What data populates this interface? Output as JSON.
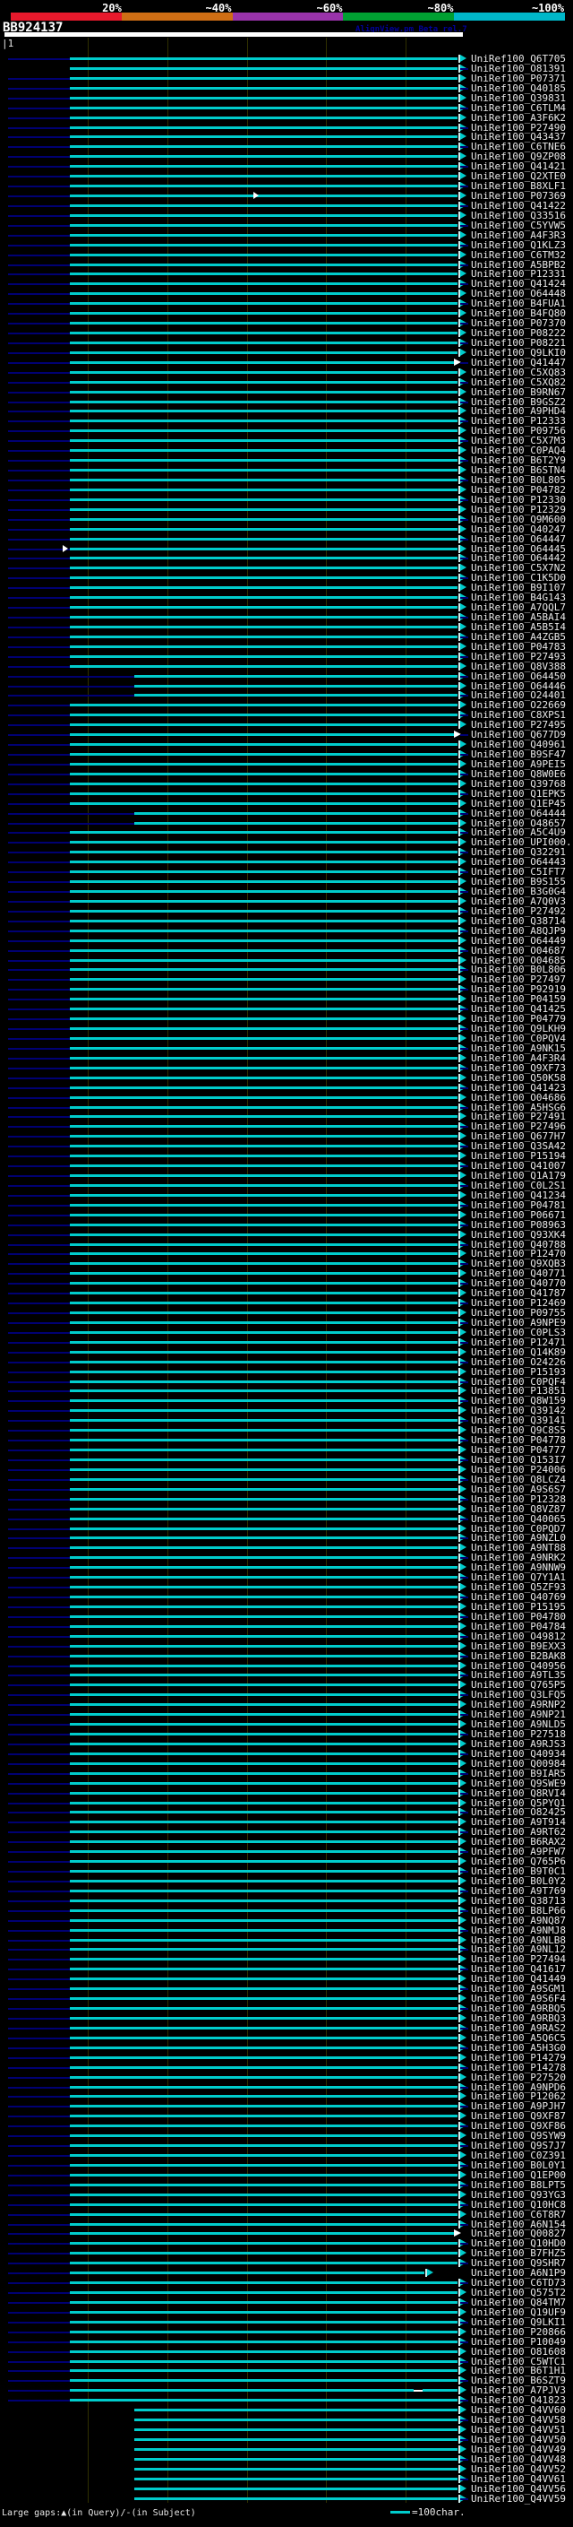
{
  "chart_data": {
    "type": "table",
    "subtype": "blast-hit-map-alignment-overview",
    "query_id": "BB924137",
    "watermark": "AlignView.pm Beta rel.7",
    "identity_scale": {
      "labels": [
        "20%",
        "~40%",
        "~60%",
        "~80%",
        "~100%"
      ],
      "colors": [
        "#e8192c",
        "#cf6e14",
        "#9933aa",
        "#00a032",
        "#00b7c9"
      ]
    },
    "query_ruler": {
      "start_label": "|1",
      "query_length": 566,
      "tick_residues": [
        100,
        200,
        300,
        400,
        500
      ]
    },
    "legend": {
      "large_gaps": "Large gaps:▲(in Query)/-(in Subject)",
      "scale_label": "=100char."
    },
    "default_hit": {
      "query_start": 79,
      "query_end": 566,
      "identity_bin": "80-100%"
    },
    "colors": {
      "hit_line": "#00cccc",
      "unaligned_lead": "#000073",
      "gridline": "#303000",
      "label_text": "#e8e8e8",
      "special_marker": "#ffffff"
    },
    "hits": [
      {
        "id": "UniRef100_Q6T705"
      },
      {
        "id": "UniRef100_O81391",
        "nv": 0
      },
      {
        "id": "UniRef100_P07371"
      },
      {
        "id": "UniRef100_Q40185"
      },
      {
        "id": "UniRef100_Q39831"
      },
      {
        "id": "UniRef100_C6TLM4"
      },
      {
        "id": "UniRef100_A3F6K2"
      },
      {
        "id": "UniRef100_P27490"
      },
      {
        "id": "UniRef100_Q43437"
      },
      {
        "id": "UniRef100_C6TNE6"
      },
      {
        "id": "UniRef100_Q9ZP08"
      },
      {
        "id": "UniRef100_Q41421"
      },
      {
        "id": "UniRef100_Q2XTE0"
      },
      {
        "id": "UniRef100_B8XLF1"
      },
      {
        "id": "UniRef100_P07369",
        "mk": 283
      },
      {
        "id": "UniRef100_Q41422"
      },
      {
        "id": "UniRef100_Q33516"
      },
      {
        "id": "UniRef100_C5YVW5"
      },
      {
        "id": "UniRef100_A4F3R3"
      },
      {
        "id": "UniRef100_Q1KLZ3"
      },
      {
        "id": "UniRef100_C6TM32"
      },
      {
        "id": "UniRef100_A5BPB2"
      },
      {
        "id": "UniRef100_P12331"
      },
      {
        "id": "UniRef100_Q41424"
      },
      {
        "id": "UniRef100_O64448"
      },
      {
        "id": "UniRef100_B4FUA1"
      },
      {
        "id": "UniRef100_B4FQ80"
      },
      {
        "id": "UniRef100_P07370"
      },
      {
        "id": "UniRef100_P08222"
      },
      {
        "id": "UniRef100_P08221"
      },
      {
        "id": "UniRef100_Q9LKI0"
      },
      {
        "id": "UniRef100_Q41447",
        "aw": 1
      },
      {
        "id": "UniRef100_C5XQ83"
      },
      {
        "id": "UniRef100_C5XQ82"
      },
      {
        "id": "UniRef100_B9RN67"
      },
      {
        "id": "UniRef100_B9GSZ2"
      },
      {
        "id": "UniRef100_A9PHD4"
      },
      {
        "id": "UniRef100_P12333"
      },
      {
        "id": "UniRef100_P09756"
      },
      {
        "id": "UniRef100_C5X7M3"
      },
      {
        "id": "UniRef100_C0PAQ4"
      },
      {
        "id": "UniRef100_B6T2Y9"
      },
      {
        "id": "UniRef100_B6STN4"
      },
      {
        "id": "UniRef100_B0L805"
      },
      {
        "id": "UniRef100_P04782"
      },
      {
        "id": "UniRef100_P12330"
      },
      {
        "id": "UniRef100_P12329"
      },
      {
        "id": "UniRef100_Q9M600"
      },
      {
        "id": "UniRef100_Q40247"
      },
      {
        "id": "UniRef100_O64447"
      },
      {
        "id": "UniRef100_O64445",
        "mk": 70
      },
      {
        "id": "UniRef100_O64442"
      },
      {
        "id": "UniRef100_C5X7N2"
      },
      {
        "id": "UniRef100_C1K5D0"
      },
      {
        "id": "UniRef100_B9I107"
      },
      {
        "id": "UniRef100_B4G143"
      },
      {
        "id": "UniRef100_A7QQL7"
      },
      {
        "id": "UniRef100_A5BAI4"
      },
      {
        "id": "UniRef100_A5B5I4"
      },
      {
        "id": "UniRef100_A4ZGB5"
      },
      {
        "id": "UniRef100_P04783"
      },
      {
        "id": "UniRef100_P27493"
      },
      {
        "id": "UniRef100_Q8V388"
      },
      {
        "id": "UniRef100_O64450",
        "nv": 150,
        "s": 150
      },
      {
        "id": "UniRef100_O64446",
        "nv": 150,
        "s": 150
      },
      {
        "id": "UniRef100_O24401",
        "nv": 150,
        "s": 150
      },
      {
        "id": "UniRef100_O22669"
      },
      {
        "id": "UniRef100_C8XPS1"
      },
      {
        "id": "UniRef100_P27495"
      },
      {
        "id": "UniRef100_Q677D9",
        "aw": 1
      },
      {
        "id": "UniRef100_Q40961"
      },
      {
        "id": "UniRef100_B9SF47"
      },
      {
        "id": "UniRef100_A9PEI5"
      },
      {
        "id": "UniRef100_Q8W0E6"
      },
      {
        "id": "UniRef100_Q39768"
      },
      {
        "id": "UniRef100_Q1EPK5"
      },
      {
        "id": "UniRef100_Q1EP45"
      },
      {
        "id": "UniRef100_O64444",
        "nv": 150,
        "s": 150
      },
      {
        "id": "UniRef100_O48657",
        "nv": 150,
        "s": 150
      },
      {
        "id": "UniRef100_A5C4U9"
      },
      {
        "id": "UniRef100_UPI000.."
      },
      {
        "id": "UniRef100_Q32291"
      },
      {
        "id": "UniRef100_O64443"
      },
      {
        "id": "UniRef100_C5IFT7"
      },
      {
        "id": "UniRef100_B9S155"
      },
      {
        "id": "UniRef100_B3G0G4"
      },
      {
        "id": "UniRef100_A7Q0V3"
      },
      {
        "id": "UniRef100_P27492"
      },
      {
        "id": "UniRef100_Q38714"
      },
      {
        "id": "UniRef100_A8QJP9"
      },
      {
        "id": "UniRef100_O64449"
      },
      {
        "id": "UniRef100_O04687"
      },
      {
        "id": "UniRef100_O04685"
      },
      {
        "id": "UniRef100_B0L806"
      },
      {
        "id": "UniRef100_P27497"
      },
      {
        "id": "UniRef100_P92919"
      },
      {
        "id": "UniRef100_P04159"
      },
      {
        "id": "UniRef100_Q41425"
      },
      {
        "id": "UniRef100_P04779"
      },
      {
        "id": "UniRef100_Q9LKH9"
      },
      {
        "id": "UniRef100_C0PQV4"
      },
      {
        "id": "UniRef100_A9NK15"
      },
      {
        "id": "UniRef100_A4F3R4"
      },
      {
        "id": "UniRef100_Q9XF73"
      },
      {
        "id": "UniRef100_Q50K58"
      },
      {
        "id": "UniRef100_Q41423"
      },
      {
        "id": "UniRef100_O04686"
      },
      {
        "id": "UniRef100_A5HSG6"
      },
      {
        "id": "UniRef100_P27491"
      },
      {
        "id": "UniRef100_P27496"
      },
      {
        "id": "UniRef100_Q677H7"
      },
      {
        "id": "UniRef100_Q3SA42"
      },
      {
        "id": "UniRef100_P15194"
      },
      {
        "id": "UniRef100_Q41007"
      },
      {
        "id": "UniRef100_Q1A179"
      },
      {
        "id": "UniRef100_C0L2S1"
      },
      {
        "id": "UniRef100_Q41234"
      },
      {
        "id": "UniRef100_P04781"
      },
      {
        "id": "UniRef100_P06671"
      },
      {
        "id": "UniRef100_P08963"
      },
      {
        "id": "UniRef100_Q93XK4"
      },
      {
        "id": "UniRef100_Q40788"
      },
      {
        "id": "UniRef100_P12470"
      },
      {
        "id": "UniRef100_Q9XQB3"
      },
      {
        "id": "UniRef100_Q40771"
      },
      {
        "id": "UniRef100_Q40770"
      },
      {
        "id": "UniRef100_Q41787"
      },
      {
        "id": "UniRef100_P12469"
      },
      {
        "id": "UniRef100_P09755"
      },
      {
        "id": "UniRef100_A9NPE9"
      },
      {
        "id": "UniRef100_C0PLS3"
      },
      {
        "id": "UniRef100_P12471"
      },
      {
        "id": "UniRef100_Q14K89"
      },
      {
        "id": "UniRef100_O24226"
      },
      {
        "id": "UniRef100_P15193"
      },
      {
        "id": "UniRef100_C0PQF4"
      },
      {
        "id": "UniRef100_P13851"
      },
      {
        "id": "UniRef100_Q8W159"
      },
      {
        "id": "UniRef100_Q39142"
      },
      {
        "id": "UniRef100_Q39141"
      },
      {
        "id": "UniRef100_Q9C8S5"
      },
      {
        "id": "UniRef100_P04778"
      },
      {
        "id": "UniRef100_P04777"
      },
      {
        "id": "UniRef100_Q153I7"
      },
      {
        "id": "UniRef100_P24006"
      },
      {
        "id": "UniRef100_Q8LCZ4"
      },
      {
        "id": "UniRef100_A9S6S7"
      },
      {
        "id": "UniRef100_P12328"
      },
      {
        "id": "UniRef100_Q8VZ87"
      },
      {
        "id": "UniRef100_Q40065"
      },
      {
        "id": "UniRef100_C0PQD7"
      },
      {
        "id": "UniRef100_A9NZL0"
      },
      {
        "id": "UniRef100_A9NT88"
      },
      {
        "id": "UniRef100_A9NRK2"
      },
      {
        "id": "UniRef100_A9NNW9"
      },
      {
        "id": "UniRef100_Q7Y1A1"
      },
      {
        "id": "UniRef100_Q5ZF93"
      },
      {
        "id": "UniRef100_Q40769"
      },
      {
        "id": "UniRef100_P15195"
      },
      {
        "id": "UniRef100_P04780"
      },
      {
        "id": "UniRef100_P04784"
      },
      {
        "id": "UniRef100_O49812"
      },
      {
        "id": "UniRef100_B9EXX3"
      },
      {
        "id": "UniRef100_B2BAK8"
      },
      {
        "id": "UniRef100_Q40956"
      },
      {
        "id": "UniRef100_A9TL35"
      },
      {
        "id": "UniRef100_Q765P5"
      },
      {
        "id": "UniRef100_Q3LFQ5"
      },
      {
        "id": "UniRef100_A9RNP2"
      },
      {
        "id": "UniRef100_A9NP21"
      },
      {
        "id": "UniRef100_A9NLD5"
      },
      {
        "id": "UniRef100_P27518"
      },
      {
        "id": "UniRef100_A9RJS3"
      },
      {
        "id": "UniRef100_Q40934"
      },
      {
        "id": "UniRef100_Q00984"
      },
      {
        "id": "UniRef100_B9IAR5"
      },
      {
        "id": "UniRef100_Q9SWE9"
      },
      {
        "id": "UniRef100_Q8RVI4"
      },
      {
        "id": "UniRef100_Q5PYQ1"
      },
      {
        "id": "UniRef100_O82425"
      },
      {
        "id": "UniRef100_A9T914"
      },
      {
        "id": "UniRef100_A9RT62"
      },
      {
        "id": "UniRef100_B6RAX2"
      },
      {
        "id": "UniRef100_A9PFW7"
      },
      {
        "id": "UniRef100_Q765P6"
      },
      {
        "id": "UniRef100_B9T0C1"
      },
      {
        "id": "UniRef100_B0L0Y2"
      },
      {
        "id": "UniRef100_A9T769"
      },
      {
        "id": "UniRef100_Q38713"
      },
      {
        "id": "UniRef100_B8LP66"
      },
      {
        "id": "UniRef100_A9NQ87"
      },
      {
        "id": "UniRef100_A9NMJ8"
      },
      {
        "id": "UniRef100_A9NLB8"
      },
      {
        "id": "UniRef100_A9NL12"
      },
      {
        "id": "UniRef100_P27494"
      },
      {
        "id": "UniRef100_Q41617"
      },
      {
        "id": "UniRef100_Q41449"
      },
      {
        "id": "UniRef100_A9SGM1"
      },
      {
        "id": "UniRef100_A9S6F4"
      },
      {
        "id": "UniRef100_A9RBQ5"
      },
      {
        "id": "UniRef100_A9RBQ3"
      },
      {
        "id": "UniRef100_A9RAS2"
      },
      {
        "id": "UniRef100_A5Q6C5"
      },
      {
        "id": "UniRef100_A5H3G0"
      },
      {
        "id": "UniRef100_P14279"
      },
      {
        "id": "UniRef100_P14278"
      },
      {
        "id": "UniRef100_P27520"
      },
      {
        "id": "UniRef100_A9NPD6"
      },
      {
        "id": "UniRef100_P12062"
      },
      {
        "id": "UniRef100_A9PJH7"
      },
      {
        "id": "UniRef100_Q9XF87"
      },
      {
        "id": "UniRef100_Q9XF86"
      },
      {
        "id": "UniRef100_Q9SYW9"
      },
      {
        "id": "UniRef100_Q9S7J7"
      },
      {
        "id": "UniRef100_C0Z391"
      },
      {
        "id": "UniRef100_B0L0Y1"
      },
      {
        "id": "UniRef100_Q1EP00"
      },
      {
        "id": "UniRef100_B8LPT5"
      },
      {
        "id": "UniRef100_Q93YG3"
      },
      {
        "id": "UniRef100_Q10HC8"
      },
      {
        "id": "UniRef100_C6T8R7"
      },
      {
        "id": "UniRef100_A6N154"
      },
      {
        "id": "UniRef100_Q00827",
        "aw": 1
      },
      {
        "id": "UniRef100_Q10HD0"
      },
      {
        "id": "UniRef100_B7FHZ5"
      },
      {
        "id": "UniRef100_Q9SHR7"
      },
      {
        "id": "UniRef100_A6N1P9",
        "e": 474
      },
      {
        "id": "UniRef100_C6TD73"
      },
      {
        "id": "UniRef100_Q575T2"
      },
      {
        "id": "UniRef100_Q84TM7"
      },
      {
        "id": "UniRef100_Q19UF9"
      },
      {
        "id": "UniRef100_Q9LKI1"
      },
      {
        "id": "UniRef100_P20866"
      },
      {
        "id": "UniRef100_P10049"
      },
      {
        "id": "UniRef100_O81608"
      },
      {
        "id": "UniRef100_C5WTC1"
      },
      {
        "id": "UniRef100_B6T1H1"
      },
      {
        "id": "UniRef100_B6SZT9"
      },
      {
        "id": "UniRef100_A7PJV3",
        "gap": [
          462,
          472
        ]
      },
      {
        "id": "UniRef100_Q41823"
      },
      {
        "id": "UniRef100_Q4VV60",
        "s": 150,
        "nv": 0
      },
      {
        "id": "UniRef100_Q4VV58",
        "s": 150,
        "nv": 0
      },
      {
        "id": "UniRef100_Q4VV51",
        "s": 150,
        "nv": 0
      },
      {
        "id": "UniRef100_Q4VV50",
        "s": 150,
        "nv": 0
      },
      {
        "id": "UniRef100_Q4VV49",
        "s": 150,
        "nv": 0
      },
      {
        "id": "UniRef100_Q4VV48",
        "s": 150,
        "nv": 0
      },
      {
        "id": "UniRef100_Q4VV52",
        "s": 150,
        "nv": 0
      },
      {
        "id": "UniRef100_Q4VV61",
        "s": 150,
        "nv": 0
      },
      {
        "id": "UniRef100_Q4VV56",
        "s": 150,
        "nv": 0
      },
      {
        "id": "UniRef100_Q4VV59",
        "s": 150,
        "nv": 0
      }
    ]
  }
}
